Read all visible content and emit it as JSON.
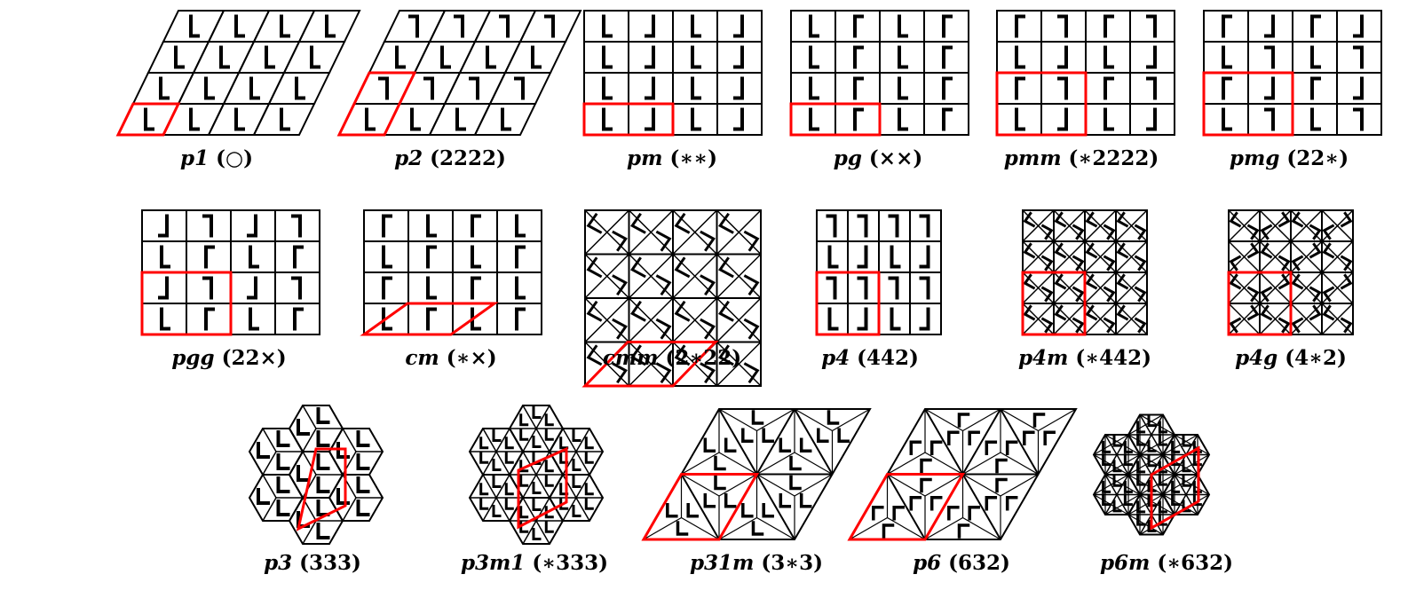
{
  "colors": {
    "line": "#000000",
    "cell": "#ff0000",
    "background": "#ffffff"
  },
  "groups": [
    {
      "name": "p1",
      "orbifold": "(○)",
      "pattern": "p1"
    },
    {
      "name": "p2",
      "orbifold": "(2222)",
      "pattern": "p2"
    },
    {
      "name": "pm",
      "orbifold": "(∗∗)",
      "pattern": "pm"
    },
    {
      "name": "pg",
      "orbifold": "(××)",
      "pattern": "pg"
    },
    {
      "name": "pmm",
      "orbifold": "(∗2222)",
      "pattern": "pmm"
    },
    {
      "name": "pmg",
      "orbifold": "(22∗)",
      "pattern": "pmg"
    },
    {
      "name": "pgg",
      "orbifold": "(22×)",
      "pattern": "pgg"
    },
    {
      "name": "cm",
      "orbifold": "(∗×)",
      "pattern": "cm"
    },
    {
      "name": "cmm",
      "orbifold": "(2∗22)",
      "pattern": "cmm"
    },
    {
      "name": "p4",
      "orbifold": "(442)",
      "pattern": "p4"
    },
    {
      "name": "p4m",
      "orbifold": "(∗442)",
      "pattern": "p4m"
    },
    {
      "name": "p4g",
      "orbifold": "(4∗2)",
      "pattern": "p4g"
    },
    {
      "name": "p3",
      "orbifold": "(333)",
      "pattern": "p3"
    },
    {
      "name": "p3m1",
      "orbifold": "(∗333)",
      "pattern": "p3m1"
    },
    {
      "name": "p31m",
      "orbifold": "(3∗3)",
      "pattern": "p31m"
    },
    {
      "name": "p6",
      "orbifold": "(632)",
      "pattern": "p6"
    },
    {
      "name": "p6m",
      "orbifold": "(∗632)",
      "pattern": "p6m"
    }
  ]
}
